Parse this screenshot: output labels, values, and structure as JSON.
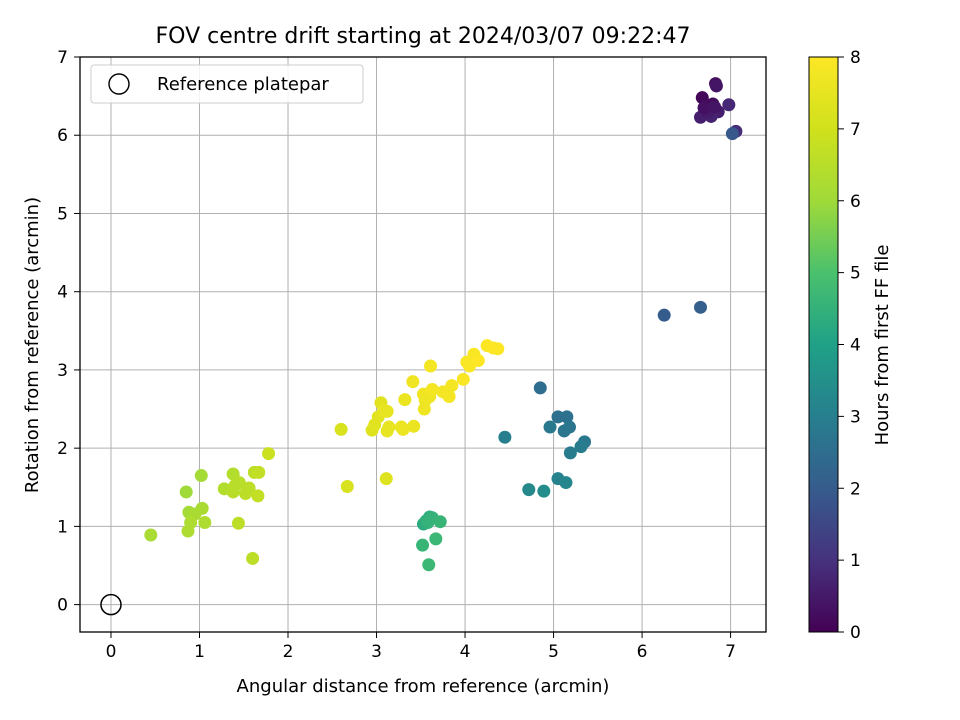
{
  "chart_data": {
    "type": "scatter",
    "title": "FOV centre drift starting at 2024/03/07 09:22:47",
    "xlabel": "Angular distance from reference (arcmin)",
    "ylabel": "Rotation from reference (arcmin)",
    "xlim": [
      -0.35,
      7.4
    ],
    "ylim": [
      -0.35,
      7.0
    ],
    "xticks": [
      0,
      1,
      2,
      3,
      4,
      5,
      6,
      7
    ],
    "yticks": [
      0,
      1,
      2,
      3,
      4,
      5,
      6,
      7
    ],
    "grid": true,
    "legend": {
      "placement": "top-left",
      "entries": [
        "Reference platepar"
      ]
    },
    "reference_point": {
      "x": 0,
      "y": 0,
      "label": "Reference platepar"
    },
    "colorbar": {
      "label": "Hours from first FF file",
      "colormap": "viridis",
      "min": 0,
      "max": 8,
      "ticks": [
        0,
        1,
        2,
        3,
        4,
        5,
        6,
        7,
        8
      ]
    },
    "points": [
      {
        "x": 6.68,
        "y": 6.48,
        "h": 0.1
      },
      {
        "x": 6.72,
        "y": 6.38,
        "h": 0.2
      },
      {
        "x": 6.8,
        "y": 6.4,
        "h": 0.2
      },
      {
        "x": 6.83,
        "y": 6.66,
        "h": 0.3
      },
      {
        "x": 6.84,
        "y": 6.63,
        "h": 0.4
      },
      {
        "x": 6.76,
        "y": 6.3,
        "h": 0.5
      },
      {
        "x": 6.86,
        "y": 6.3,
        "h": 0.6
      },
      {
        "x": 6.66,
        "y": 6.23,
        "h": 0.6
      },
      {
        "x": 6.78,
        "y": 6.24,
        "h": 0.7
      },
      {
        "x": 6.98,
        "y": 6.39,
        "h": 0.8
      },
      {
        "x": 6.74,
        "y": 6.3,
        "h": 0.5
      },
      {
        "x": 6.7,
        "y": 6.35,
        "h": 0.3
      },
      {
        "x": 6.82,
        "y": 6.36,
        "h": 0.4
      },
      {
        "x": 7.06,
        "y": 6.05,
        "h": 0.9
      },
      {
        "x": 7.02,
        "y": 6.02,
        "h": 1.9
      },
      {
        "x": 6.25,
        "y": 3.7,
        "h": 2.0
      },
      {
        "x": 6.66,
        "y": 3.8,
        "h": 2.1
      },
      {
        "x": 4.85,
        "y": 2.77,
        "h": 2.5
      },
      {
        "x": 5.05,
        "y": 2.4,
        "h": 2.6
      },
      {
        "x": 5.15,
        "y": 2.4,
        "h": 2.6
      },
      {
        "x": 5.18,
        "y": 2.27,
        "h": 2.7
      },
      {
        "x": 5.12,
        "y": 2.22,
        "h": 2.7
      },
      {
        "x": 4.96,
        "y": 2.27,
        "h": 2.8
      },
      {
        "x": 5.35,
        "y": 2.08,
        "h": 2.8
      },
      {
        "x": 5.31,
        "y": 2.02,
        "h": 2.9
      },
      {
        "x": 5.19,
        "y": 1.94,
        "h": 2.9
      },
      {
        "x": 4.45,
        "y": 2.14,
        "h": 3.0
      },
      {
        "x": 5.05,
        "y": 1.61,
        "h": 3.1
      },
      {
        "x": 5.14,
        "y": 1.56,
        "h": 3.2
      },
      {
        "x": 4.72,
        "y": 1.47,
        "h": 3.3
      },
      {
        "x": 4.89,
        "y": 1.45,
        "h": 3.4
      },
      {
        "x": 3.53,
        "y": 1.03,
        "h": 4.3
      },
      {
        "x": 3.56,
        "y": 1.07,
        "h": 4.4
      },
      {
        "x": 3.6,
        "y": 1.12,
        "h": 4.4
      },
      {
        "x": 3.63,
        "y": 1.11,
        "h": 4.5
      },
      {
        "x": 3.58,
        "y": 1.05,
        "h": 4.5
      },
      {
        "x": 3.72,
        "y": 1.06,
        "h": 4.6
      },
      {
        "x": 3.52,
        "y": 0.76,
        "h": 4.6
      },
      {
        "x": 3.67,
        "y": 0.84,
        "h": 4.7
      },
      {
        "x": 3.59,
        "y": 0.51,
        "h": 4.7
      },
      {
        "x": 0.85,
        "y": 1.44,
        "h": 6.0
      },
      {
        "x": 1.02,
        "y": 1.65,
        "h": 6.1
      },
      {
        "x": 0.88,
        "y": 1.18,
        "h": 6.1
      },
      {
        "x": 0.95,
        "y": 1.16,
        "h": 6.2
      },
      {
        "x": 1.03,
        "y": 1.23,
        "h": 6.2
      },
      {
        "x": 1.06,
        "y": 1.05,
        "h": 6.3
      },
      {
        "x": 0.9,
        "y": 1.05,
        "h": 6.3
      },
      {
        "x": 0.87,
        "y": 0.94,
        "h": 6.3
      },
      {
        "x": 0.45,
        "y": 0.89,
        "h": 6.2
      },
      {
        "x": 1.28,
        "y": 1.48,
        "h": 6.4
      },
      {
        "x": 1.38,
        "y": 1.67,
        "h": 6.4
      },
      {
        "x": 1.4,
        "y": 1.52,
        "h": 6.5
      },
      {
        "x": 1.45,
        "y": 1.56,
        "h": 6.5
      },
      {
        "x": 1.38,
        "y": 1.44,
        "h": 6.5
      },
      {
        "x": 1.52,
        "y": 1.42,
        "h": 6.6
      },
      {
        "x": 1.56,
        "y": 1.49,
        "h": 6.6
      },
      {
        "x": 1.62,
        "y": 1.69,
        "h": 6.6
      },
      {
        "x": 1.67,
        "y": 1.69,
        "h": 6.7
      },
      {
        "x": 1.66,
        "y": 1.39,
        "h": 6.7
      },
      {
        "x": 1.44,
        "y": 1.04,
        "h": 6.6
      },
      {
        "x": 1.6,
        "y": 0.59,
        "h": 6.6
      },
      {
        "x": 1.78,
        "y": 1.93,
        "h": 6.9
      },
      {
        "x": 2.6,
        "y": 2.24,
        "h": 7.2
      },
      {
        "x": 2.67,
        "y": 1.51,
        "h": 7.2
      },
      {
        "x": 3.11,
        "y": 1.61,
        "h": 7.3
      },
      {
        "x": 2.95,
        "y": 2.23,
        "h": 7.3
      },
      {
        "x": 2.98,
        "y": 2.3,
        "h": 7.4
      },
      {
        "x": 3.02,
        "y": 2.4,
        "h": 7.4
      },
      {
        "x": 3.05,
        "y": 2.58,
        "h": 7.4
      },
      {
        "x": 3.08,
        "y": 2.48,
        "h": 7.5
      },
      {
        "x": 3.12,
        "y": 2.47,
        "h": 7.5
      },
      {
        "x": 3.12,
        "y": 2.22,
        "h": 7.5
      },
      {
        "x": 3.14,
        "y": 2.27,
        "h": 7.5
      },
      {
        "x": 3.28,
        "y": 2.27,
        "h": 7.6
      },
      {
        "x": 3.3,
        "y": 2.24,
        "h": 7.6
      },
      {
        "x": 3.32,
        "y": 2.62,
        "h": 7.6
      },
      {
        "x": 3.42,
        "y": 2.28,
        "h": 7.6
      },
      {
        "x": 3.41,
        "y": 2.85,
        "h": 7.7
      },
      {
        "x": 3.53,
        "y": 2.69,
        "h": 7.7
      },
      {
        "x": 3.55,
        "y": 2.61,
        "h": 7.7
      },
      {
        "x": 3.54,
        "y": 2.5,
        "h": 7.7
      },
      {
        "x": 3.6,
        "y": 2.66,
        "h": 7.7
      },
      {
        "x": 3.63,
        "y": 2.75,
        "h": 7.8
      },
      {
        "x": 3.61,
        "y": 3.05,
        "h": 7.8
      },
      {
        "x": 3.75,
        "y": 2.72,
        "h": 7.8
      },
      {
        "x": 3.82,
        "y": 2.66,
        "h": 7.8
      },
      {
        "x": 3.85,
        "y": 2.8,
        "h": 7.8
      },
      {
        "x": 3.98,
        "y": 2.88,
        "h": 7.9
      },
      {
        "x": 4.02,
        "y": 3.1,
        "h": 7.9
      },
      {
        "x": 4.05,
        "y": 3.05,
        "h": 7.9
      },
      {
        "x": 4.1,
        "y": 3.2,
        "h": 7.9
      },
      {
        "x": 4.15,
        "y": 3.12,
        "h": 8.0
      },
      {
        "x": 4.25,
        "y": 3.31,
        "h": 8.0
      },
      {
        "x": 4.32,
        "y": 3.28,
        "h": 8.0
      },
      {
        "x": 4.37,
        "y": 3.27,
        "h": 8.0
      }
    ]
  }
}
